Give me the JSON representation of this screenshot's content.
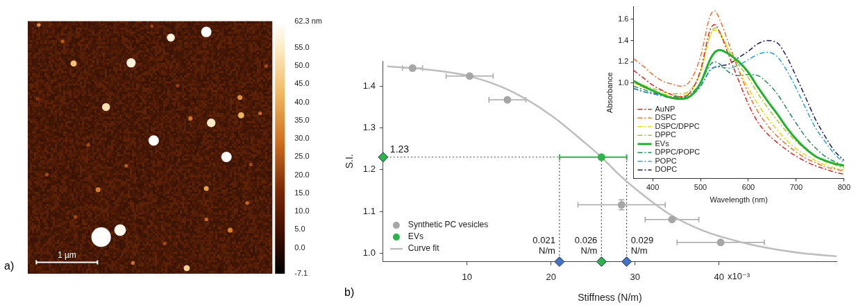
{
  "chart_data": [
    {
      "type": "image",
      "panel": "a)",
      "xlim": [
        0,
        4
      ],
      "ylim": [
        0,
        4
      ],
      "tick_labels": false,
      "particles": {
        "x": [
          2.92,
          2.34,
          1.69,
          0.75,
          0.18,
          2.03,
          0.57,
          1.28,
          3.0,
          3.49,
          2.66,
          2.06,
          3.25,
          3.8,
          1.15,
          2.92,
          1.61,
          3.31,
          2.92,
          1.2,
          1.51,
          2.6,
          1.72,
          3.59,
          0.78,
          0.31,
          2.24,
          0.99,
          3.9,
          0.16,
          2.45,
          3.47,
          3.65
        ],
        "y": [
          0.17,
          0.26,
          0.66,
          0.67,
          0.06,
          0.08,
          0.32,
          1.36,
          1.61,
          1.49,
          1.54,
          1.89,
          2.15,
          1.46,
          2.67,
          2.65,
          2.29,
          3.31,
          3.14,
          3.42,
          3.31,
          3.91,
          3.83,
          2.88,
          3.1,
          2.43,
          3.52,
          1.96,
          0.71,
          1.23,
          1.02,
          1.21,
          2.27
        ],
        "radius": [
          0.085,
          0.065,
          0.075,
          0.05,
          0.03,
          0.03,
          0.03,
          0.065,
          0.07,
          0.05,
          0.035,
          0.085,
          0.085,
          0.03,
          0.04,
          0.04,
          0.03,
          0.04,
          0.03,
          0.16,
          0.095,
          0.05,
          0.03,
          0.03,
          0.03,
          0.03,
          0.03,
          0.03,
          0.03,
          0.03,
          0.03,
          0.04,
          0.03
        ],
        "height": [
          62,
          58,
          58,
          45,
          35,
          20,
          25,
          52,
          55,
          42,
          30,
          62,
          62,
          28,
          32,
          38,
          25,
          32,
          28,
          62,
          60,
          48,
          30,
          28,
          22,
          22,
          22,
          22,
          22,
          18,
          20,
          35,
          22
        ]
      },
      "colorbar": {
        "range": [
          -7.1,
          62.3
        ],
        "ticks": [
          {
            "value": 62.3,
            "label": "62.3 nm"
          },
          {
            "value": 55,
            "label": "55.0"
          },
          {
            "value": 50,
            "label": "50.0"
          },
          {
            "value": 45,
            "label": "45.0"
          },
          {
            "value": 40,
            "label": "40.0"
          },
          {
            "value": 35,
            "label": "35.0"
          },
          {
            "value": 30,
            "label": "30.0"
          },
          {
            "value": 25,
            "label": "25.0"
          },
          {
            "value": 20,
            "label": "20.0"
          },
          {
            "value": 15,
            "label": "15.0"
          },
          {
            "value": 10,
            "label": "10.0"
          },
          {
            "value": 5,
            "label": "5.0"
          },
          {
            "value": 0,
            "label": "0.0"
          },
          -7.1
        ]
      },
      "scale_bar": {
        "length": 1,
        "label": "1 µm"
      }
    },
    {
      "type": "scatter",
      "panel": "b)",
      "x_label": "Stiffness (N/m)",
      "y_label": "S.I.",
      "x_exponent_label": "x10⁻³",
      "xlim": [
        0,
        54
      ],
      "xticks": [
        10,
        20,
        30,
        40
      ],
      "ylim": [
        0.98,
        1.46
      ],
      "yticks": [
        {
          "value": 1,
          "label": "1.0"
        },
        1.1,
        1.2,
        1.3,
        1.4
      ],
      "grid": false,
      "legend": "lower left",
      "series": [
        {
          "name": "Synthetic PC vesicles",
          "type": "scatter",
          "marker": "circle",
          "color": "#a6a6a6",
          "x": [
            3.5,
            10.3,
            14.8,
            28.4,
            34.4,
            40.2
          ],
          "y": [
            1.443,
            1.424,
            1.367,
            1.116,
            1.081,
            1.026
          ],
          "x_error": [
            1.2,
            2.8,
            2.2,
            5.2,
            3.2,
            5.2
          ],
          "y_error": [
            null,
            null,
            null,
            0.012,
            null,
            null
          ]
        },
        {
          "name": "EVs",
          "type": "scatter",
          "marker": "circle",
          "color": "#2db34a",
          "x": [
            26
          ],
          "y": [
            1.23
          ],
          "x_low": [
            21
          ],
          "x_high": [
            29
          ]
        },
        {
          "name": "Curve fit",
          "type": "line",
          "line_style": "solid",
          "color": "#bdbdbd",
          "x": [
            0.5,
            5,
            10,
            15,
            20,
            24,
            26,
            28,
            30,
            34,
            38,
            42,
            46,
            50,
            54
          ],
          "y": [
            1.447,
            1.44,
            1.425,
            1.39,
            1.33,
            1.265,
            1.23,
            1.19,
            1.155,
            1.095,
            1.055,
            1.03,
            1.012,
            1.0,
            0.993
          ]
        }
      ],
      "readouts": {
        "y": {
          "value": 1.23,
          "label": "1.23",
          "color": "#2db34a"
        },
        "x": [
          {
            "value": 21,
            "label": "0.021 N/m",
            "color": "#4472c4"
          },
          {
            "value": 26,
            "label": "0.026 N/m",
            "color": "#2db34a"
          },
          {
            "value": 29,
            "label": "0.029 N/m",
            "color": "#4472c4"
          }
        ]
      }
    },
    {
      "type": "line",
      "x_label": "Wavelength (nm)",
      "y_label": "Absorbance",
      "xlim": [
        360,
        800
      ],
      "xticks": [
        400,
        500,
        600,
        700,
        800
      ],
      "ylim": [
        0.1,
        1.72
      ],
      "yticks": [
        {
          "value": 1,
          "label": "1.0"
        },
        1.2,
        1.4,
        1.6
      ],
      "grid": false,
      "legend": "lower left",
      "x": [
        360,
        380,
        400,
        420,
        440,
        460,
        480,
        500,
        520,
        530,
        540,
        560,
        580,
        600,
        620,
        640,
        660,
        680,
        700,
        720,
        740,
        760,
        780,
        800
      ],
      "series": [
        {
          "name": "AuNP",
          "color": "#e02424",
          "line_style": "dash-dot",
          "values": [
            1.12,
            1.05,
            0.98,
            0.93,
            0.89,
            0.87,
            0.92,
            1.12,
            1.5,
            1.55,
            1.48,
            1.25,
            1.02,
            0.8,
            0.63,
            0.52,
            0.44,
            0.37,
            0.31,
            0.26,
            0.22,
            0.19,
            0.16,
            0.14
          ]
        },
        {
          "name": "DSPC",
          "color": "#f07030",
          "line_style": "dash-dot",
          "values": [
            1.23,
            1.16,
            1.08,
            1.02,
            0.99,
            0.97,
            1.03,
            1.25,
            1.63,
            1.68,
            1.6,
            1.36,
            1.12,
            0.9,
            0.73,
            0.6,
            0.5,
            0.42,
            0.35,
            0.29,
            0.25,
            0.21,
            0.19,
            0.17
          ]
        },
        {
          "name": "DSPC/DPPC",
          "color": "#e8d800",
          "line_style": "dash-dot",
          "values": [
            1.0,
            0.96,
            0.93,
            0.9,
            0.88,
            0.88,
            0.93,
            1.1,
            1.44,
            1.5,
            1.46,
            1.3,
            1.12,
            0.95,
            0.8,
            0.67,
            0.56,
            0.46,
            0.38,
            0.32,
            0.27,
            0.23,
            0.2,
            0.18
          ]
        },
        {
          "name": "DPPC",
          "color": "#a8c820",
          "line_style": "dash-dot",
          "values": [
            1.02,
            0.98,
            0.95,
            0.92,
            0.9,
            0.9,
            0.94,
            1.1,
            1.45,
            1.52,
            1.48,
            1.3,
            1.17,
            1.05,
            0.9,
            0.77,
            0.65,
            0.54,
            0.45,
            0.37,
            0.31,
            0.26,
            0.23,
            0.2
          ]
        },
        {
          "name": "EVs",
          "color": "#22b02e",
          "line_style": "solid",
          "values": [
            1.02,
            0.97,
            0.93,
            0.89,
            0.86,
            0.85,
            0.88,
            1.0,
            1.22,
            1.29,
            1.31,
            1.27,
            1.2,
            1.1,
            0.96,
            0.83,
            0.71,
            0.58,
            0.47,
            0.38,
            0.31,
            0.27,
            0.24,
            0.22
          ]
        },
        {
          "name": "DPPC/POPC",
          "color": "#2a8a5a",
          "line_style": "dash-dot",
          "values": [
            0.97,
            0.94,
            0.91,
            0.89,
            0.87,
            0.87,
            0.9,
            1.0,
            1.17,
            1.2,
            1.18,
            1.1,
            1.07,
            1.08,
            1.07,
            1.0,
            0.9,
            0.76,
            0.62,
            0.49,
            0.39,
            0.31,
            0.26,
            0.22
          ]
        },
        {
          "name": "POPC",
          "color": "#2aa0d0",
          "line_style": "dash-dot",
          "values": [
            0.95,
            0.92,
            0.9,
            0.88,
            0.86,
            0.85,
            0.88,
            0.97,
            1.12,
            1.15,
            1.15,
            1.14,
            1.17,
            1.22,
            1.27,
            1.29,
            1.25,
            1.12,
            0.95,
            0.76,
            0.58,
            0.45,
            0.33,
            0.25
          ]
        },
        {
          "name": "DOPC",
          "color": "#1a1a5e",
          "line_style": "dash-dot",
          "values": [
            0.95,
            0.92,
            0.9,
            0.88,
            0.86,
            0.86,
            0.88,
            0.97,
            1.12,
            1.15,
            1.16,
            1.18,
            1.24,
            1.3,
            1.37,
            1.4,
            1.38,
            1.25,
            1.06,
            0.86,
            0.66,
            0.5,
            0.36,
            0.27
          ]
        }
      ]
    }
  ]
}
